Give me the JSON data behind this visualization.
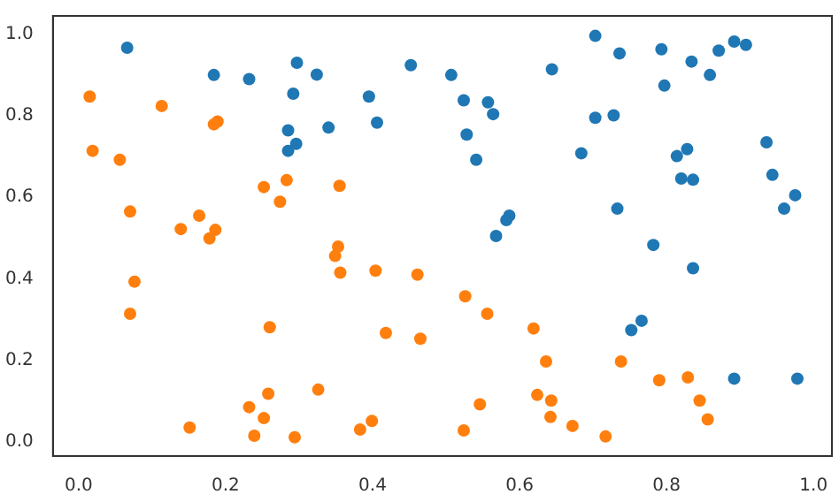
{
  "chart_data": {
    "type": "scatter",
    "xlim": [
      -0.035,
      1.025
    ],
    "ylim": [
      -0.035,
      1.045
    ],
    "xticks": [
      {
        "value": 0,
        "label": "0.0"
      },
      {
        "value": 0.2,
        "label": "0.2"
      },
      {
        "value": 0.4,
        "label": "0.4"
      },
      {
        "value": 0.6,
        "label": "0.6"
      },
      {
        "value": 0.8,
        "label": "0.8"
      },
      {
        "value": 1,
        "label": "1.0"
      }
    ],
    "yticks": [
      {
        "value": 0,
        "label": "0.0"
      },
      {
        "value": 0.2,
        "label": "0.2"
      },
      {
        "value": 0.4,
        "label": "0.4"
      },
      {
        "value": 0.6,
        "label": "0.6"
      },
      {
        "value": 0.8,
        "label": "0.8"
      },
      {
        "value": 1,
        "label": "1.0"
      }
    ],
    "grid": false,
    "legend": false,
    "marker": "circle",
    "series": [
      {
        "color": "#1f77b4",
        "x": [
          0.066,
          0.184,
          0.232,
          0.297,
          0.324,
          0.292,
          0.285,
          0.296,
          0.285,
          0.34,
          0.395,
          0.406,
          0.452,
          0.507,
          0.524,
          0.557,
          0.564,
          0.528,
          0.541,
          0.586,
          0.582,
          0.568,
          0.644,
          0.703,
          0.736,
          0.703,
          0.728,
          0.684,
          0.733,
          0.782,
          0.793,
          0.797,
          0.834,
          0.859,
          0.871,
          0.892,
          0.908,
          0.814,
          0.828,
          0.82,
          0.836,
          0.936,
          0.944,
          0.975,
          0.96,
          0.836,
          0.752,
          0.766,
          0.892,
          0.978
        ],
        "values": [
          0.967,
          0.9,
          0.89,
          0.93,
          0.901,
          0.854,
          0.764,
          0.731,
          0.714,
          0.771,
          0.847,
          0.783,
          0.924,
          0.9,
          0.838,
          0.833,
          0.804,
          0.754,
          0.692,
          0.555,
          0.544,
          0.505,
          0.914,
          0.996,
          0.953,
          0.795,
          0.801,
          0.708,
          0.572,
          0.483,
          0.963,
          0.874,
          0.933,
          0.9,
          0.96,
          0.982,
          0.974,
          0.701,
          0.718,
          0.646,
          0.643,
          0.735,
          0.655,
          0.605,
          0.572,
          0.426,
          0.274,
          0.297,
          0.155,
          0.155
        ]
      },
      {
        "color": "#ff7f0e",
        "x": [
          0.015,
          0.019,
          0.056,
          0.07,
          0.113,
          0.184,
          0.189,
          0.139,
          0.164,
          0.186,
          0.178,
          0.252,
          0.274,
          0.283,
          0.355,
          0.353,
          0.349,
          0.356,
          0.404,
          0.461,
          0.076,
          0.07,
          0.26,
          0.418,
          0.465,
          0.326,
          0.258,
          0.232,
          0.252,
          0.151,
          0.239,
          0.294,
          0.383,
          0.399,
          0.526,
          0.556,
          0.619,
          0.636,
          0.738,
          0.624,
          0.643,
          0.642,
          0.672,
          0.717,
          0.546,
          0.524,
          0.79,
          0.829,
          0.845,
          0.856
        ],
        "values": [
          0.847,
          0.714,
          0.692,
          0.565,
          0.824,
          0.779,
          0.786,
          0.522,
          0.555,
          0.52,
          0.499,
          0.625,
          0.589,
          0.642,
          0.628,
          0.479,
          0.456,
          0.415,
          0.42,
          0.41,
          0.393,
          0.314,
          0.281,
          0.267,
          0.253,
          0.128,
          0.118,
          0.085,
          0.058,
          0.035,
          0.015,
          0.011,
          0.03,
          0.051,
          0.357,
          0.314,
          0.278,
          0.197,
          0.197,
          0.115,
          0.101,
          0.061,
          0.039,
          0.013,
          0.092,
          0.028,
          0.151,
          0.158,
          0.101,
          0.055
        ]
      }
    ]
  }
}
